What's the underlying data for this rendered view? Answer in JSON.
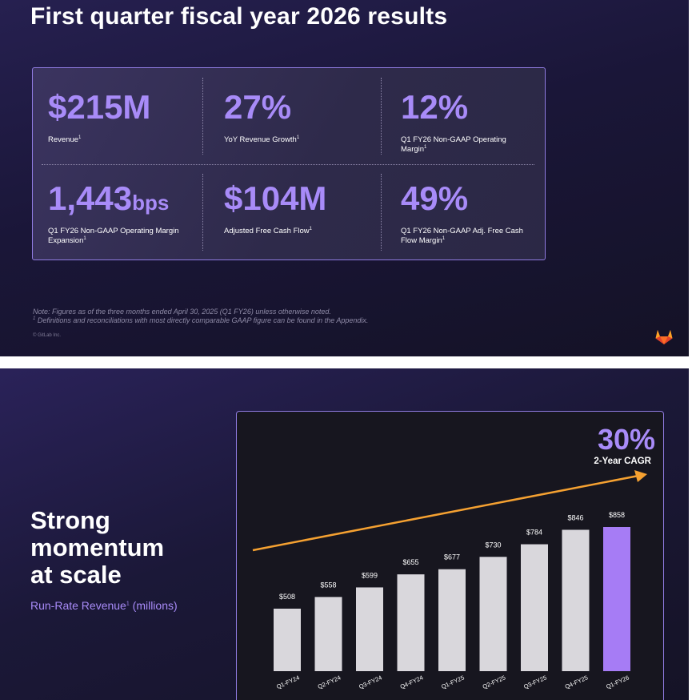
{
  "slide1": {
    "title": "First quarter fiscal year 2026 results",
    "metrics": [
      {
        "value": "$215M",
        "unit": "",
        "label": "Revenue",
        "sup": "1"
      },
      {
        "value": "27%",
        "unit": "",
        "label": "YoY Revenue Growth",
        "sup": "1"
      },
      {
        "value": "12%",
        "unit": "",
        "label": "Q1 FY26 Non-GAAP Operating Margin",
        "sup": "1"
      },
      {
        "value": "1,443",
        "unit": "bps",
        "label": "Q1 FY26 Non-GAAP Operating Margin Expansion",
        "sup": "1"
      },
      {
        "value": "$104M",
        "unit": "",
        "label": "Adjusted Free Cash Flow",
        "sup": "1"
      },
      {
        "value": "49%",
        "unit": "",
        "label": "Q1 FY26 Non-GAAP Adj. Free Cash Flow Margin",
        "sup": "1"
      }
    ],
    "note_line1": "Note:  Figures as of the three months ended April 30, 2025 (Q1 FY26) unless otherwise noted.",
    "note_line2_sup": "1",
    "note_line2": " Definitions and reconciliations with most directly comparable GAAP figure can be found in the Appendix.",
    "copyright": "© GitLab Inc.",
    "logo_icon": "gitlab-logo-icon"
  },
  "slide2": {
    "heading_lines": [
      "Strong",
      "momentum",
      "at scale"
    ],
    "subheading": "Run-Rate Revenue",
    "subheading_sup": "1",
    "subheading_suffix": " (millions)"
  },
  "colors": {
    "accent": "#a88bf8",
    "bar": "#d9d7dc",
    "highlight_bar": "#a67cf5",
    "arrow": "#f5a131"
  },
  "chart_data": {
    "type": "bar",
    "categories": [
      "Q1-FY24",
      "Q2-FY24",
      "Q3-FY24",
      "Q4-FY24",
      "Q1-FY25",
      "Q2-FY25",
      "Q3-FY25",
      "Q4-FY25",
      "Q1-FY26"
    ],
    "values": [
      508,
      558,
      599,
      655,
      677,
      730,
      784,
      846,
      858
    ],
    "data_labels": [
      "$508",
      "$558",
      "$599",
      "$655",
      "$677",
      "$730",
      "$784",
      "$846",
      "$858"
    ],
    "highlight_category": "Q1-FY26",
    "ylim": [
      240,
      858
    ],
    "title": "Run-Rate Revenue (millions)",
    "annotation_value": "30%",
    "annotation_label": "2-Year CAGR",
    "trend_arrow": true,
    "grid": false
  }
}
